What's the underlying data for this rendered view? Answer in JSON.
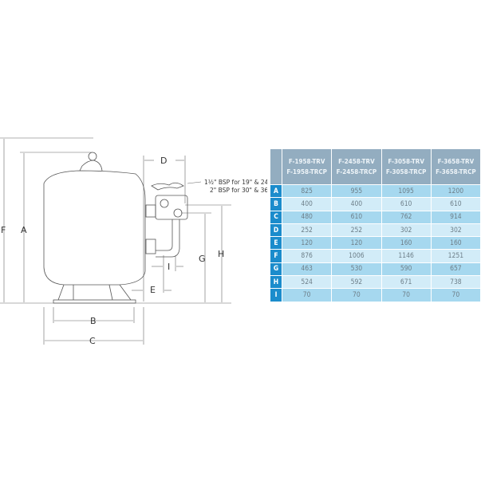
{
  "drawing": {
    "dimension_labels": [
      "A",
      "B",
      "C",
      "D",
      "E",
      "F",
      "G",
      "H",
      "I"
    ],
    "connection_note_line1": "1½\" BSP for 19\" & 24\"",
    "connection_note_line2": "2\" BSP for 30\" & 36\""
  },
  "table": {
    "headers": [
      {
        "line1": "F-1958-TRV",
        "line2": "F-1958-TRCP"
      },
      {
        "line1": "F-2458-TRV",
        "line2": "F-2458-TRCP"
      },
      {
        "line1": "F-3058-TRV",
        "line2": "F-3058-TRCP"
      },
      {
        "line1": "F-3658-TRV",
        "line2": "F-3658-TRCP"
      }
    ],
    "rows": [
      {
        "label": "A",
        "values": [
          "825",
          "955",
          "1095",
          "1200"
        ]
      },
      {
        "label": "B",
        "values": [
          "400",
          "400",
          "610",
          "610"
        ]
      },
      {
        "label": "C",
        "values": [
          "480",
          "610",
          "762",
          "914"
        ]
      },
      {
        "label": "D",
        "values": [
          "252",
          "252",
          "302",
          "302"
        ]
      },
      {
        "label": "E",
        "values": [
          "120",
          "120",
          "160",
          "160"
        ]
      },
      {
        "label": "F",
        "values": [
          "876",
          "1006",
          "1146",
          "1251"
        ]
      },
      {
        "label": "G",
        "values": [
          "463",
          "530",
          "590",
          "657"
        ]
      },
      {
        "label": "H",
        "values": [
          "524",
          "592",
          "671",
          "738"
        ]
      },
      {
        "label": "I",
        "values": [
          "70",
          "70",
          "70",
          "70"
        ]
      }
    ],
    "colors": {
      "header": "#93adc0",
      "row_label": "#1b8ccc",
      "row_dark": "#a6d8ef",
      "row_light": "#d2ecf8"
    }
  }
}
